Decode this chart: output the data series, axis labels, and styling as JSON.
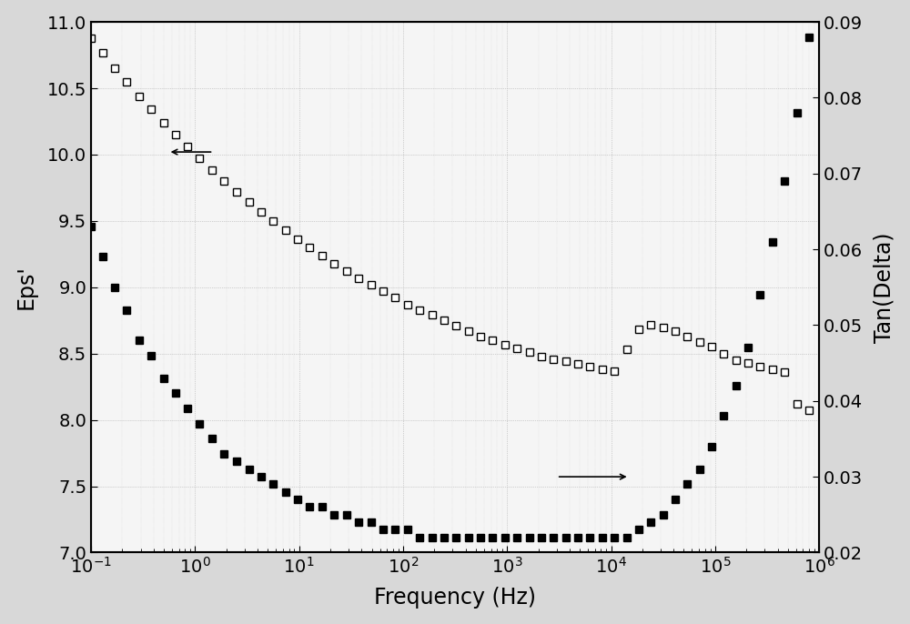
{
  "title": "",
  "xlabel": "Frequency (Hz)",
  "ylabel_left": "Eps'",
  "ylabel_right": "Tan(Delta)",
  "xlim": [
    0.1,
    1000000.0
  ],
  "ylim_left": [
    7.0,
    11.0
  ],
  "ylim_right": [
    0.02,
    0.09
  ],
  "background_color": "#f0f0f0",
  "freq": [
    0.1,
    0.13,
    0.17,
    0.22,
    0.29,
    0.38,
    0.5,
    0.65,
    0.85,
    1.1,
    1.45,
    1.9,
    2.5,
    3.3,
    4.3,
    5.6,
    7.4,
    9.7,
    12.7,
    16.7,
    21.8,
    28.6,
    37.5,
    49,
    64,
    84,
    110,
    144,
    189,
    247,
    324,
    424,
    556,
    728,
    953,
    1248,
    1634,
    2140,
    2800,
    3665,
    4799,
    6283,
    8222,
    10760,
    14090,
    18440,
    24130,
    31600,
    41350,
    54140,
    70870,
    92800,
    121500,
    159000,
    208000,
    272000,
    356000,
    466000,
    610000,
    800000
  ],
  "eps": [
    10.88,
    10.77,
    10.65,
    10.55,
    10.44,
    10.34,
    10.24,
    10.15,
    10.06,
    9.97,
    9.88,
    9.8,
    9.72,
    9.64,
    9.57,
    9.5,
    9.43,
    9.36,
    9.3,
    9.24,
    9.18,
    9.12,
    9.07,
    9.02,
    8.97,
    8.92,
    8.87,
    8.83,
    8.79,
    8.75,
    8.71,
    8.67,
    8.63,
    8.6,
    8.57,
    8.54,
    8.51,
    8.48,
    8.46,
    8.44,
    8.42,
    8.4,
    8.38,
    8.37,
    8.53,
    8.68,
    8.72,
    8.7,
    8.67,
    8.63,
    8.59,
    8.55,
    8.5,
    8.45,
    8.43,
    8.4,
    8.38,
    8.36,
    8.12,
    8.07
  ],
  "tan_delta": [
    0.063,
    0.059,
    0.055,
    0.052,
    0.048,
    0.046,
    0.043,
    0.041,
    0.039,
    0.037,
    0.035,
    0.033,
    0.032,
    0.031,
    0.03,
    0.029,
    0.028,
    0.027,
    0.026,
    0.026,
    0.025,
    0.025,
    0.024,
    0.024,
    0.023,
    0.023,
    0.023,
    0.022,
    0.022,
    0.022,
    0.022,
    0.022,
    0.022,
    0.022,
    0.022,
    0.022,
    0.022,
    0.022,
    0.022,
    0.022,
    0.022,
    0.022,
    0.022,
    0.022,
    0.022,
    0.023,
    0.024,
    0.025,
    0.027,
    0.029,
    0.031,
    0.034,
    0.038,
    0.042,
    0.047,
    0.054,
    0.061,
    0.069,
    0.078,
    0.088
  ],
  "left_yticks": [
    7.0,
    7.5,
    8.0,
    8.5,
    9.0,
    9.5,
    10.0,
    10.5,
    11.0
  ],
  "right_yticks": [
    0.02,
    0.03,
    0.04,
    0.05,
    0.06,
    0.07,
    0.08,
    0.09
  ],
  "marker_size": 5.5,
  "marker_edge_width": 1.0
}
